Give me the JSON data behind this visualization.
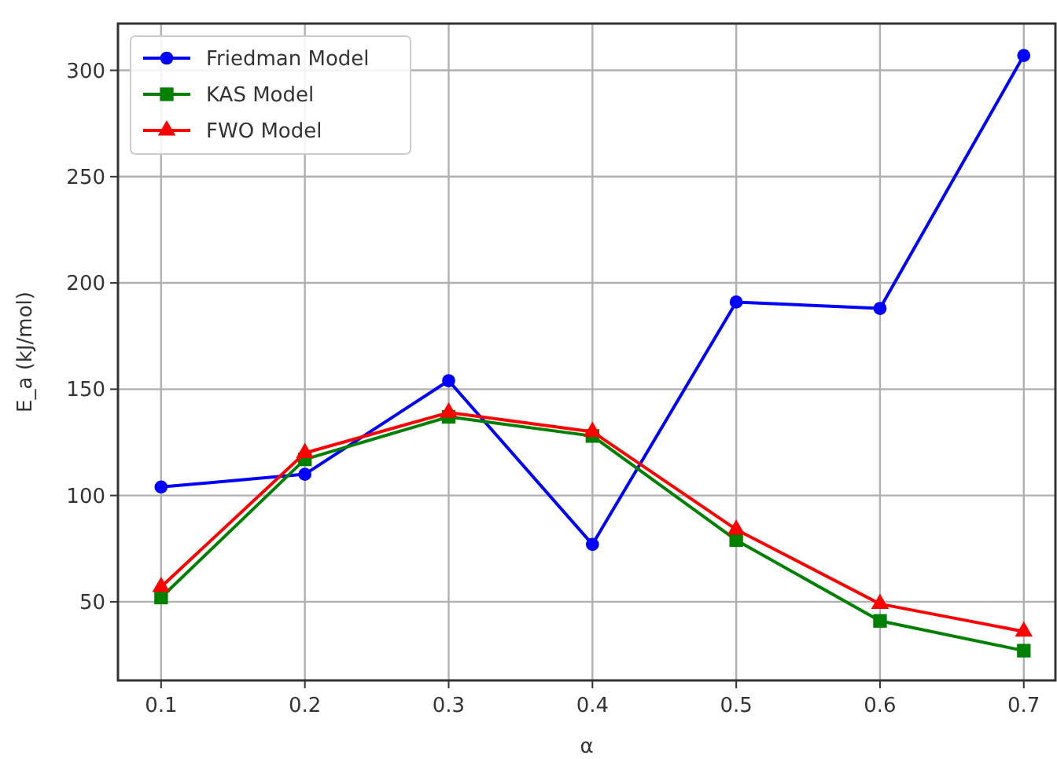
{
  "chart_data": {
    "type": "line",
    "xlabel": "α",
    "ylabel": "E_a (kJ/mol)",
    "x": [
      0.1,
      0.2,
      0.3,
      0.4,
      0.5,
      0.6,
      0.7
    ],
    "series": [
      {
        "name": "Friedman Model",
        "color": "#0000ff",
        "marker": "circle",
        "values": [
          104,
          110,
          154,
          77,
          191,
          188,
          307
        ]
      },
      {
        "name": "KAS Model",
        "color": "#008000",
        "marker": "square",
        "values": [
          52,
          117,
          137,
          128,
          79,
          41,
          27
        ]
      },
      {
        "name": "FWO Model",
        "color": "#ff0000",
        "marker": "triangle",
        "values": [
          57,
          120,
          139,
          130,
          84,
          49,
          36
        ]
      }
    ],
    "xlim": [
      0.07,
      0.722
    ],
    "ylim": [
      13,
      322
    ],
    "xticks": [
      0.1,
      0.2,
      0.3,
      0.4,
      0.5,
      0.6,
      0.7
    ],
    "yticks": [
      50,
      100,
      150,
      200,
      250,
      300
    ],
    "grid": true,
    "legend": "top left"
  }
}
